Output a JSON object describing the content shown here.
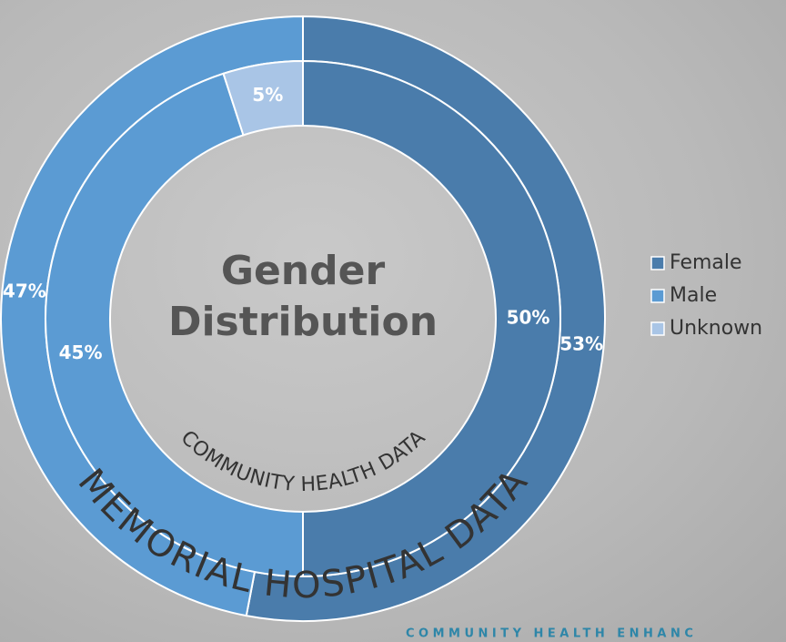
{
  "chart_data": {
    "type": "nested-donut",
    "title": "Gender Distribution",
    "categories": [
      "Female",
      "Male",
      "Unknown"
    ],
    "colors": [
      "#4a7cab",
      "#5b9bd3",
      "#a9c5e6"
    ],
    "rings": [
      {
        "name": "MEMORIAL HOSPITAL DATA",
        "values": [
          53,
          47
        ],
        "value_labels": [
          "53%",
          "47%"
        ]
      },
      {
        "name": "COMMUNITY HEALTH DATA",
        "values": [
          50,
          45,
          5
        ],
        "value_labels": [
          "50%",
          "45%",
          "5%"
        ]
      }
    ],
    "legend": "right"
  },
  "footer": "COMMUNITY HEALTH ENHANC"
}
